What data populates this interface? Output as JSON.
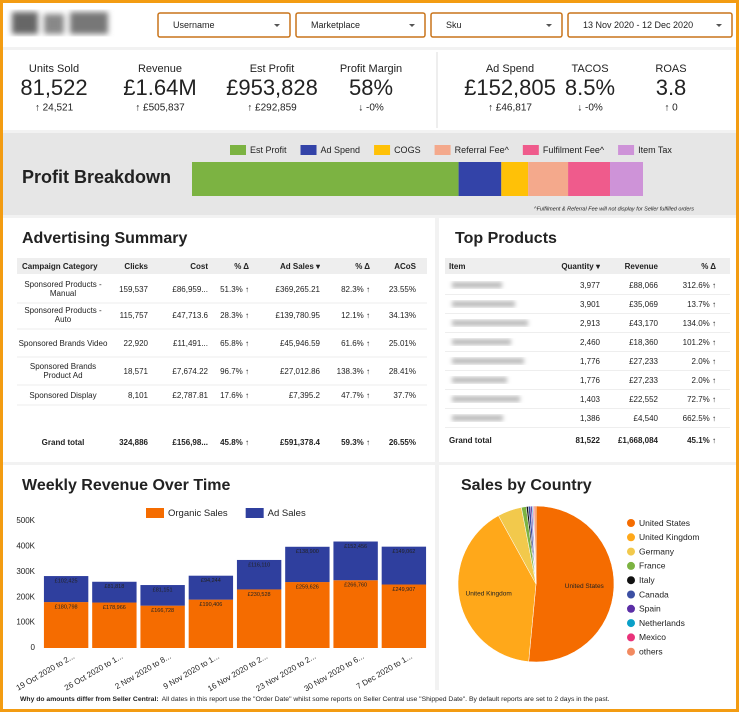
{
  "header": {
    "filters": [
      "Username",
      "Marketplace",
      "Sku",
      "13 Nov 2020 - 12 Dec 2020"
    ]
  },
  "kpis": [
    {
      "label": "Units Sold",
      "value": "81,522",
      "change": "↑ 24,521"
    },
    {
      "label": "Revenue",
      "value": "£1.64M",
      "change": "↑ £505,837"
    },
    {
      "label": "Est Profit",
      "value": "£953,828",
      "change": "↑ £292,859"
    },
    {
      "label": "Profit Margin",
      "value": "58%",
      "change": "↓ -0%"
    },
    {
      "label": "Ad Spend",
      "value": "£152,805",
      "change": "↑ £46,817"
    },
    {
      "label": "TACOS",
      "value": "8.5%",
      "change": "↓ -0%"
    },
    {
      "label": "ROAS",
      "value": "3.8",
      "change": "↑ 0"
    }
  ],
  "advertising_summary": {
    "title": "Advertising Summary",
    "columns": [
      "Campaign Category",
      "Clicks",
      "Cost",
      "% Δ",
      "Ad Sales ▾",
      "% Δ",
      "ACoS"
    ],
    "rows": [
      [
        "Sponsored Products - Manual",
        "159,537",
        "£86,959...",
        "51.3% ↑",
        "£369,265.21",
        "82.3% ↑",
        "23.55%"
      ],
      [
        "Sponsored Products - Auto",
        "115,757",
        "£47,713.6",
        "28.3% ↑",
        "£139,780.95",
        "12.1% ↑",
        "34.13%"
      ],
      [
        "Sponsored Brands Video",
        "22,920",
        "£11,491...",
        "65.8% ↑",
        "£45,946.59",
        "61.6% ↑",
        "25.01%"
      ],
      [
        "Sponsored Brands Product Ad",
        "18,571",
        "£7,674.22",
        "96.7% ↑",
        "£27,012.86",
        "138.3% ↑",
        "28.41%"
      ],
      [
        "Sponsored Display",
        "8,101",
        "£2,787.81",
        "17.6% ↑",
        "£7,395.2",
        "47.7% ↑",
        "37.7%"
      ]
    ],
    "total": [
      "Grand total",
      "324,886",
      "£156,98...",
      "45.8% ↑",
      "£591,378.4",
      "59.3% ↑",
      "26.55%"
    ]
  },
  "top_products": {
    "title": "Top Products",
    "columns": [
      "Item",
      "Quantity ▾",
      "Revenue",
      "% Δ"
    ],
    "rows": [
      [
        "3,977",
        "£88,066",
        "312.6% ↑"
      ],
      [
        "3,901",
        "£35,069",
        "13.7% ↑"
      ],
      [
        "2,913",
        "£43,170",
        "134.0% ↑"
      ],
      [
        "2,460",
        "£18,360",
        "101.2% ↑"
      ],
      [
        "1,776",
        "£27,233",
        "2.0% ↑"
      ],
      [
        "1,776",
        "£27,233",
        "2.0% ↑"
      ],
      [
        "1,403",
        "£22,552",
        "72.7% ↑"
      ],
      [
        "1,386",
        "£4,540",
        "662.5% ↑"
      ]
    ],
    "total": [
      "Grand total",
      "81,522",
      "£1,668,084",
      "45.1% ↑"
    ]
  },
  "chart_data": [
    {
      "type": "stacked-bar",
      "title": "Profit Breakdown",
      "note": "^Fulfilment & Referral Fee will not display for Seller fulfilled orders",
      "series": [
        {
          "name": "Est Profit",
          "color": "#7cb342",
          "values": [
            953828
          ]
        },
        {
          "name": "Ad Spend",
          "color": "#3343a8",
          "values": [
            152805
          ]
        },
        {
          "name": "COGS",
          "color": "#ffc107",
          "values": [
            96000
          ]
        },
        {
          "name": "Referral Fee^",
          "color": "#f4a98c",
          "values": [
            143000
          ]
        },
        {
          "name": "Fulfilment Fee^",
          "color": "#ef5b8c",
          "values": [
            150000
          ]
        },
        {
          "name": "Item Tax",
          "color": "#ce93d8",
          "values": [
            118000
          ]
        }
      ]
    },
    {
      "type": "bar",
      "stacked": true,
      "title": "Weekly Revenue Over Time",
      "legend": "top",
      "grid": false,
      "categories": [
        "19 Oct 2020 to 2...",
        "26 Oct 2020 to 1...",
        "2 Nov 2020 to 8...",
        "9 Nov 2020 to 1...",
        "16 Nov 2020 to 2...",
        "23 Nov 2020 to 2...",
        "30 Nov 2020 to 6...",
        "7 Dec 2020 to 1..."
      ],
      "series": [
        {
          "name": "Organic Sales",
          "color": "#f56c00",
          "values": [
            180798,
            178966,
            166728,
            190406,
            230528,
            259626,
            266760,
            249907
          ],
          "value_labels": [
            "£180,798",
            "£178,966",
            "£166,728",
            "£190,406",
            "£230,528",
            "£259,626",
            "£266,760",
            "£249,907"
          ]
        },
        {
          "name": "Ad Sales",
          "color": "#2f3f9e",
          "values": [
            102425,
            81818,
            81151,
            94244,
            116110,
            138900,
            152456,
            149062
          ],
          "value_labels": [
            "£102,425",
            "£81,818",
            "£81,151",
            "£94,244",
            "£116,110",
            "£138,900",
            "£152,456",
            "£149,062"
          ]
        }
      ],
      "ylim": [
        0,
        500000
      ],
      "yticks": [
        0,
        {
          "value": 100000,
          "label": "100K"
        },
        {
          "value": 200000,
          "label": "200K"
        },
        {
          "value": 300000,
          "label": "300K"
        },
        {
          "value": 400000,
          "label": "400K"
        },
        {
          "value": 500000,
          "label": "500K"
        }
      ]
    },
    {
      "type": "pie",
      "title": "Sales by Country",
      "legend": "right",
      "categories": [
        "United States",
        "United Kingdom",
        "Germany",
        "France",
        "Italy",
        "Canada",
        "Spain",
        "Netherlands",
        "Mexico",
        "others"
      ],
      "values": [
        51.5,
        40.5,
        5,
        1,
        0.4,
        0.5,
        0.3,
        0.2,
        0.2,
        0.4
      ],
      "colors": [
        "#f56c00",
        "#ffa81a",
        "#f2c94c",
        "#7cb342",
        "#111111",
        "#3c4fa3",
        "#5b2ea6",
        "#0aa0c8",
        "#e9327a",
        "#f28a60"
      ]
    }
  ],
  "footer": {
    "label": "Why do amounts differ from Seller Central:",
    "text": "All dates in this report use the \"Order Date\" whilst some reports on Seller Central use \"Shipped Date\". By default reports are set to 2 days in the past."
  }
}
